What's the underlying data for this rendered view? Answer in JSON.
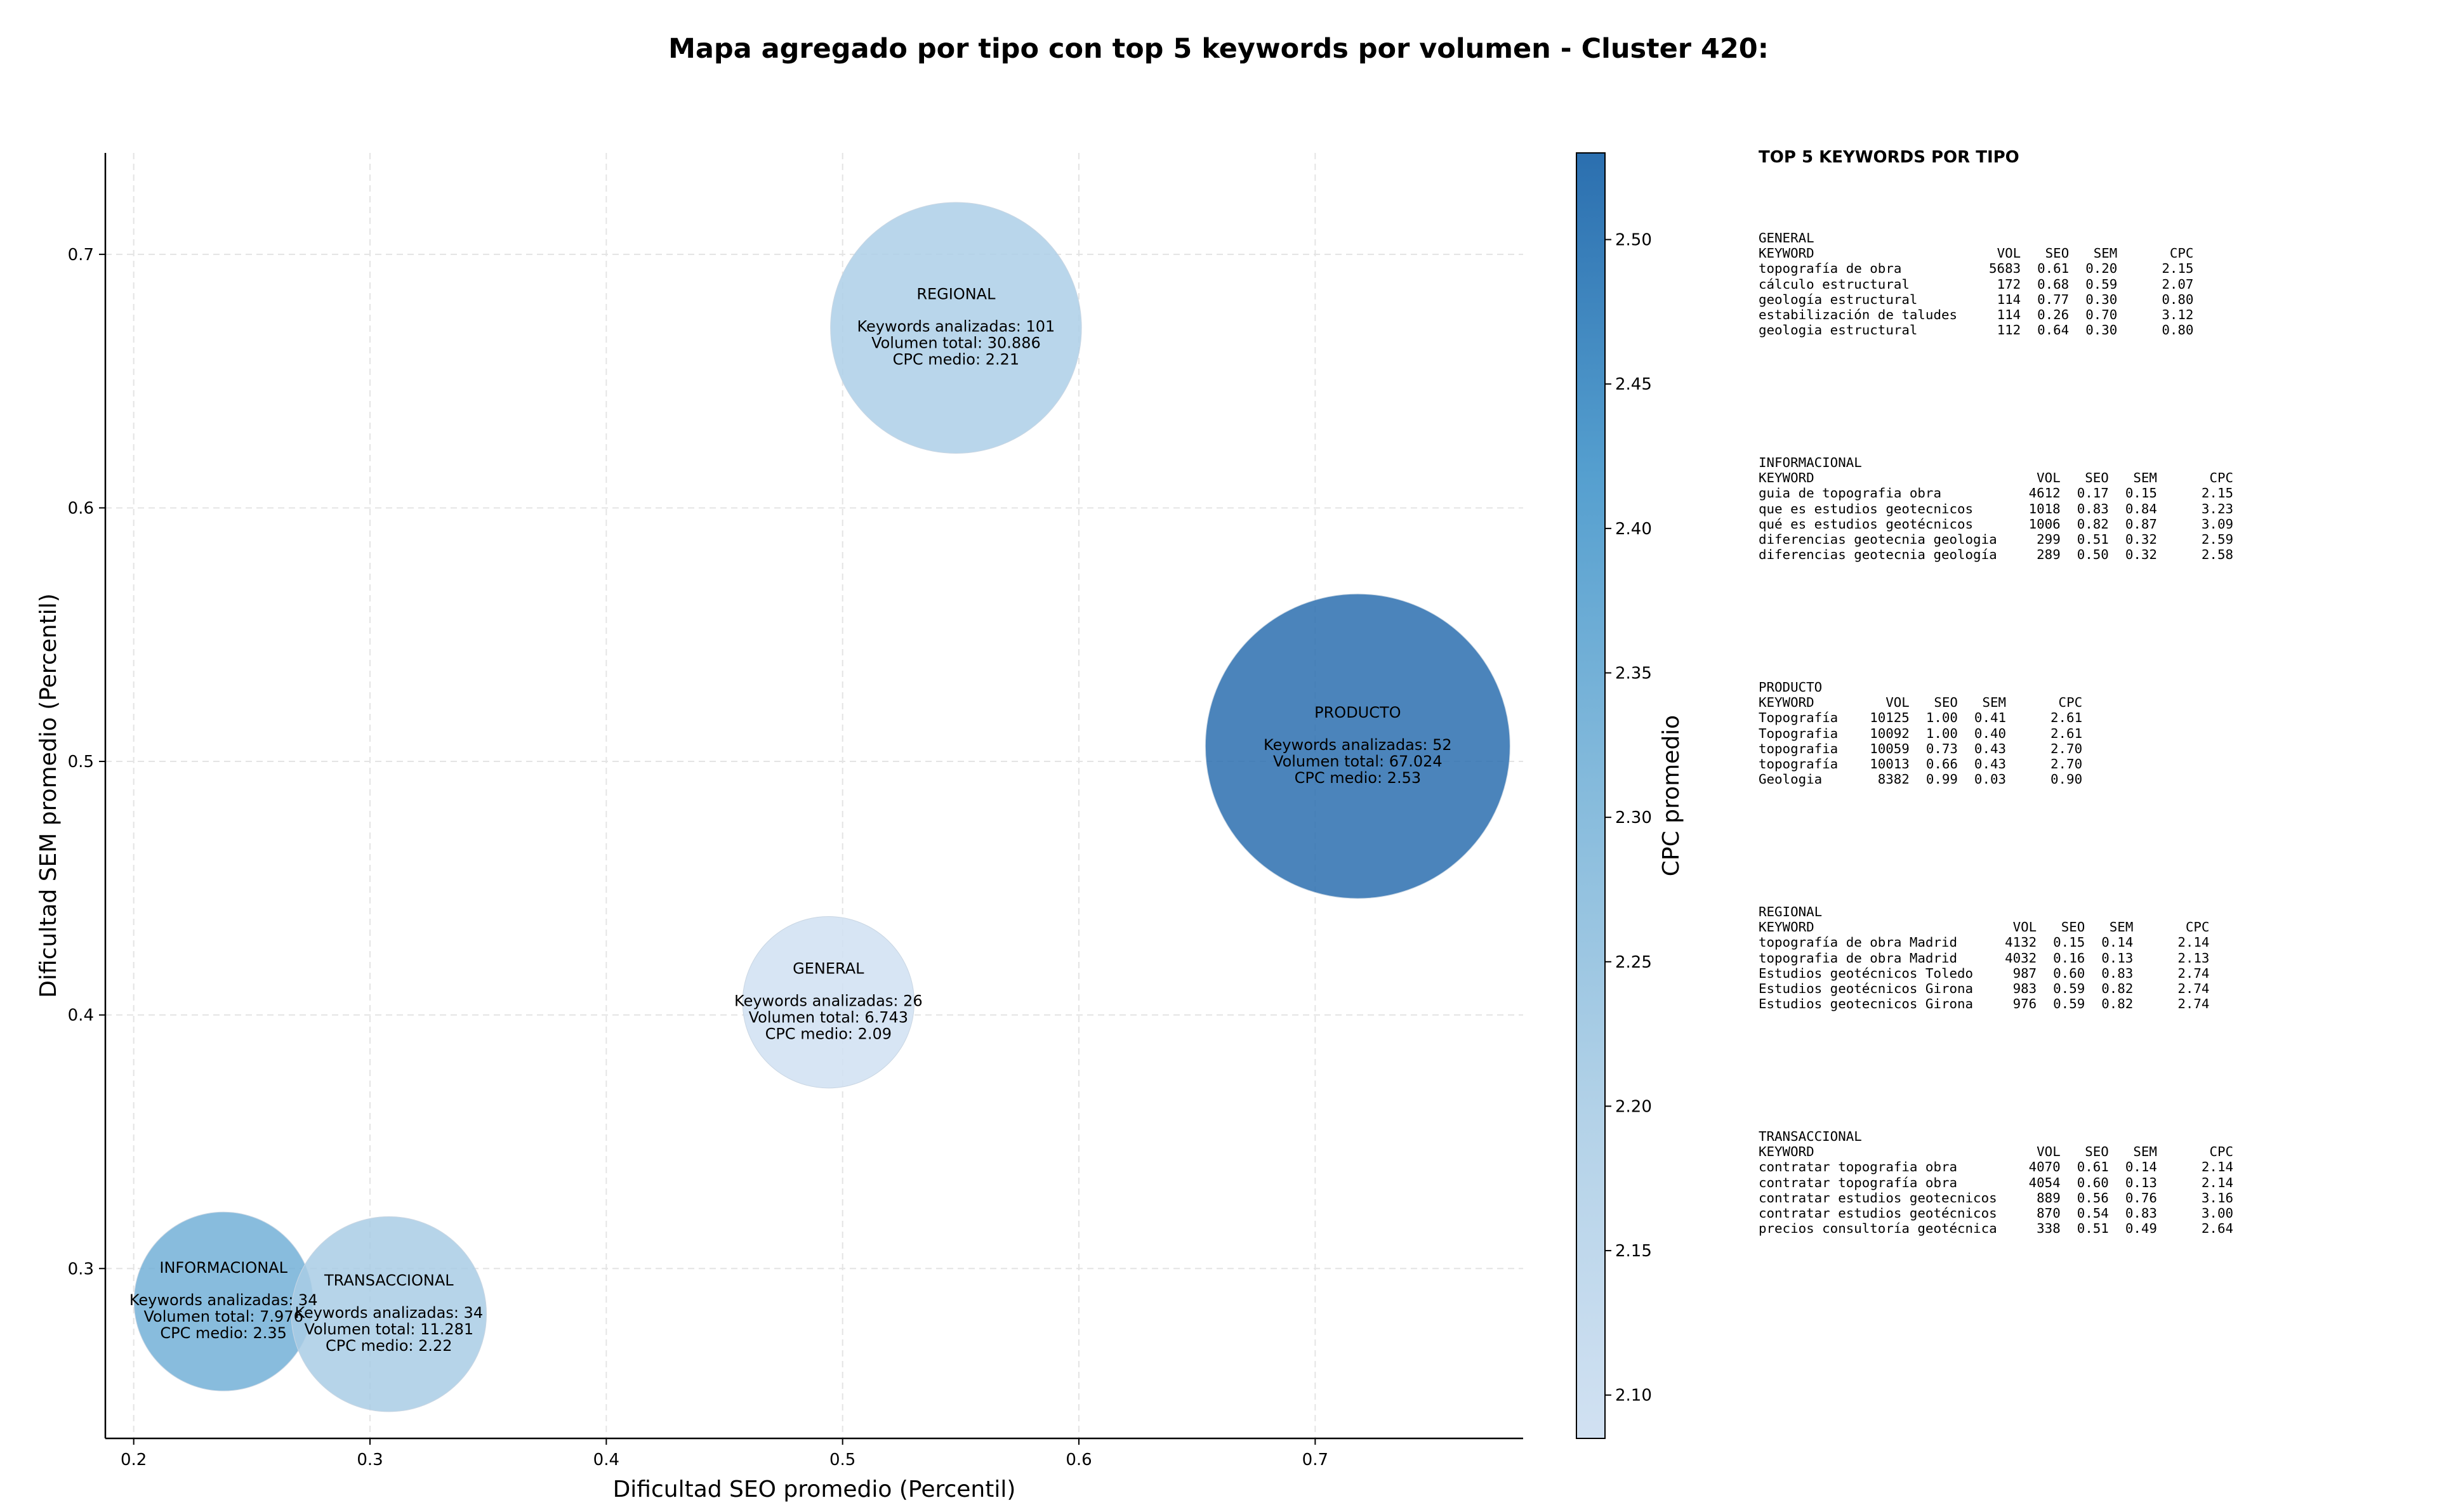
{
  "chart_data": {
    "type": "scatter",
    "title": "Mapa agregado por tipo con top 5 keywords por volumen - Cluster 420:",
    "xlabel": "Dificultad SEO promedio (Percentil)",
    "ylabel": "Dificultad SEM promedio (Percentil)",
    "xlim": [
      0.188,
      0.788
    ],
    "ylim": [
      0.233,
      0.74
    ],
    "xticks": [
      "0.2",
      "0.3",
      "0.4",
      "0.5",
      "0.6",
      "0.7"
    ],
    "yticks": [
      "0.3",
      "0.4",
      "0.5",
      "0.6",
      "0.7"
    ],
    "grid": true,
    "colorbar": {
      "label": "CPC promedio",
      "min": 2.085,
      "max": 2.53,
      "ticks": [
        "2.10",
        "2.15",
        "2.20",
        "2.25",
        "2.30",
        "2.35",
        "2.40",
        "2.45",
        "2.50"
      ]
    },
    "points": [
      {
        "name": "REGIONAL",
        "x": 0.548,
        "y": 0.671,
        "keywords": 101,
        "volume": 30886,
        "cpc": 2.21,
        "lines": [
          "Keywords analizadas: 101",
          "Volumen total: 30.886",
          "CPC medio: 2.21"
        ]
      },
      {
        "name": "PRODUCTO",
        "x": 0.718,
        "y": 0.506,
        "keywords": 52,
        "volume": 67024,
        "cpc": 2.53,
        "lines": [
          "Keywords analizadas: 52",
          "Volumen total: 67.024",
          "CPC medio: 2.53"
        ]
      },
      {
        "name": "GENERAL",
        "x": 0.494,
        "y": 0.405,
        "keywords": 26,
        "volume": 6743,
        "cpc": 2.09,
        "lines": [
          "Keywords analizadas: 26",
          "Volumen total: 6.743",
          "CPC medio: 2.09"
        ]
      },
      {
        "name": "INFORMACIONAL",
        "x": 0.238,
        "y": 0.287,
        "keywords": 34,
        "volume": 7976,
        "cpc": 2.35,
        "lines": [
          "Keywords analizadas: 34",
          "Volumen total: 7.976",
          "CPC medio: 2.35"
        ]
      },
      {
        "name": "TRANSACCIONAL",
        "x": 0.308,
        "y": 0.282,
        "keywords": 34,
        "volume": 11281,
        "cpc": 2.22,
        "lines": [
          "Keywords analizadas: 34",
          "Volumen total: 11.281",
          "CPC medio: 2.22"
        ]
      }
    ]
  },
  "panel": {
    "title": "TOP 5 KEYWORDS POR TIPO",
    "columns": [
      "KEYWORD",
      "VOL",
      "SEO",
      "SEM",
      "CPC"
    ],
    "groups": [
      {
        "name": "GENERAL",
        "rows": [
          [
            "topografía de obra",
            "5683",
            "0.61",
            "0.20",
            "2.15"
          ],
          [
            "cálculo estructural",
            "172",
            "0.68",
            "0.59",
            "2.07"
          ],
          [
            "geología estructural",
            "114",
            "0.77",
            "0.30",
            "0.80"
          ],
          [
            "estabilización de taludes",
            "114",
            "0.26",
            "0.70",
            "3.12"
          ],
          [
            "geologia estructural",
            "112",
            "0.64",
            "0.30",
            "0.80"
          ]
        ]
      },
      {
        "name": "INFORMACIONAL",
        "rows": [
          [
            "guia de topografia obra",
            "4612",
            "0.17",
            "0.15",
            "2.15"
          ],
          [
            "que es estudios geotecnicos",
            "1018",
            "0.83",
            "0.84",
            "3.23"
          ],
          [
            "qué es estudios geotécnicos",
            "1006",
            "0.82",
            "0.87",
            "3.09"
          ],
          [
            "diferencias geotecnia geologia",
            "299",
            "0.51",
            "0.32",
            "2.59"
          ],
          [
            "diferencias geotecnia geología",
            "289",
            "0.50",
            "0.32",
            "2.58"
          ]
        ]
      },
      {
        "name": "PRODUCTO",
        "rows": [
          [
            "Topografía",
            "10125",
            "1.00",
            "0.41",
            "2.61"
          ],
          [
            "Topografia",
            "10092",
            "1.00",
            "0.40",
            "2.61"
          ],
          [
            "topografia",
            "10059",
            "0.73",
            "0.43",
            "2.70"
          ],
          [
            "topografía",
            "10013",
            "0.66",
            "0.43",
            "2.70"
          ],
          [
            "Geologia",
            "8382",
            "0.99",
            "0.03",
            "0.90"
          ]
        ]
      },
      {
        "name": "REGIONAL",
        "rows": [
          [
            "topografía de obra Madrid",
            "4132",
            "0.15",
            "0.14",
            "2.14"
          ],
          [
            "topografia de obra Madrid",
            "4032",
            "0.16",
            "0.13",
            "2.13"
          ],
          [
            "Estudios geotécnicos Toledo",
            "987",
            "0.60",
            "0.83",
            "2.74"
          ],
          [
            "Estudios geotécnicos Girona",
            "983",
            "0.59",
            "0.82",
            "2.74"
          ],
          [
            "Estudios geotecnicos Girona",
            "976",
            "0.59",
            "0.82",
            "2.74"
          ]
        ]
      },
      {
        "name": "TRANSACCIONAL",
        "rows": [
          [
            "contratar topografia obra",
            "4070",
            "0.61",
            "0.14",
            "2.14"
          ],
          [
            "contratar topografía obra",
            "4054",
            "0.60",
            "0.13",
            "2.14"
          ],
          [
            "contratar estudios geotecnicos",
            "889",
            "0.56",
            "0.76",
            "3.16"
          ],
          [
            "contratar estudios geotécnicos",
            "870",
            "0.54",
            "0.83",
            "3.00"
          ],
          [
            "precios consultoría geotécnica",
            "338",
            "0.51",
            "0.49",
            "2.64"
          ]
        ]
      }
    ]
  }
}
